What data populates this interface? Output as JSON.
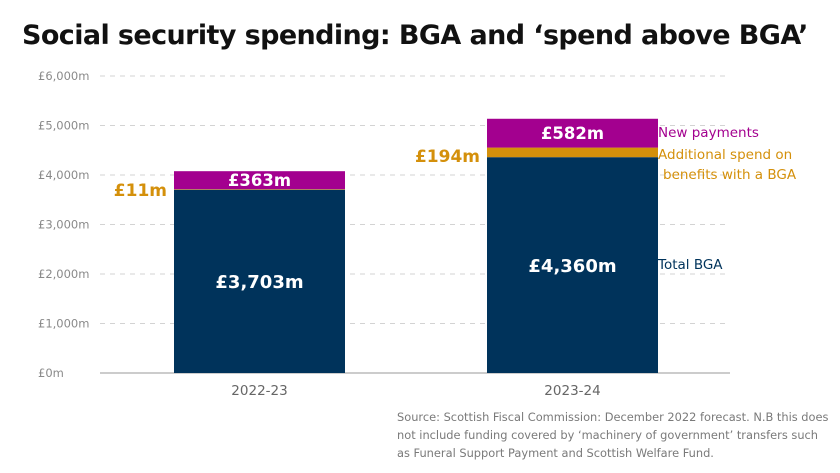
{
  "title": "Social security spending: BGA and ‘spend above BGA’",
  "source_lines": [
    "Source: Scottish Fiscal Commission: December 2022 forecast. N.B this does",
    "not include funding covered by ‘machinery of government’ transfers such",
    "as Funeral Support Payment and Scottish Welfare Fund."
  ],
  "chart_data": {
    "type": "bar",
    "stacked": true,
    "categories": [
      "2022-23",
      "2023-24"
    ],
    "ylim": [
      0,
      6000
    ],
    "yticks": [
      0,
      1000,
      2000,
      3000,
      4000,
      5000,
      6000
    ],
    "ytick_labels": [
      "£0m",
      "£1,000m",
      "£2,000m",
      "£3,000m",
      "£4,000m",
      "£5,000m",
      "£6,000m"
    ],
    "grid": true,
    "series": [
      {
        "name": "Total BGA",
        "color": "#00335b",
        "values": [
          3703,
          4360
        ],
        "labels": [
          "£3,703m",
          "£4,360m"
        ]
      },
      {
        "name": "Additional spend on benefits with a BGA",
        "legend_lines": [
          "Additional spend on",
          "benefits with a BGA"
        ],
        "color": "#d4900b",
        "values": [
          11,
          194
        ],
        "labels": [
          "£11m",
          "£194m"
        ]
      },
      {
        "name": "New payments",
        "color": "#a3008f",
        "values": [
          363,
          582
        ],
        "labels": [
          "£363m",
          "£582m"
        ]
      }
    ]
  }
}
